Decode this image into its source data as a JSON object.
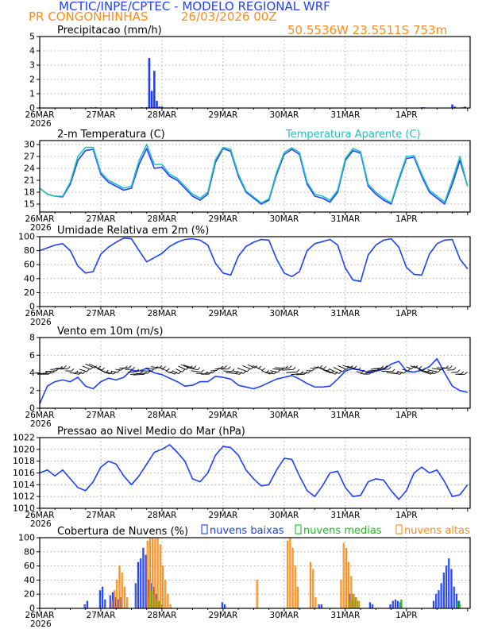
{
  "header": {
    "title": "MCTIC/INPE/CPTEC - MODELO REGIONAL WRF",
    "station": "PR CONGONHINHAS",
    "run": "26/03/2026 00Z",
    "location": "50.5536W 23.5511S 753m"
  },
  "colors": {
    "blue": "#1f3fff",
    "cyan": "#20c0c0",
    "green": "#22bb22",
    "orange": "#ff8c1a",
    "title": "#1f3fff",
    "header_orange": "#ff8c1a",
    "grid": "#999999"
  },
  "x_axis": {
    "day_labels": [
      "26MAR",
      "27MAR",
      "28MAR",
      "29MAR",
      "30MAR",
      "31MAR",
      "1APR"
    ],
    "year_label": "2026"
  },
  "chart_data": [
    {
      "id": "precip",
      "type": "bar",
      "title": "Precipitacao (mm/h)",
      "ylim": [
        0,
        5
      ],
      "yticks": [
        0,
        1,
        2,
        3,
        4,
        5
      ],
      "xunit": "hours since 26MAR 00Z",
      "xlim": [
        0,
        169
      ],
      "bar_width_h": 1,
      "series": [
        {
          "name": "precip",
          "color": "#1f3fff",
          "x": [
            0,
            5,
            10,
            20,
            22,
            40,
            42,
            43,
            44,
            45,
            46,
            47,
            48,
            52,
            55,
            90,
            150,
            151,
            162,
            163,
            166,
            167
          ],
          "values": [
            0.05,
            0.03,
            0.02,
            0.05,
            0.06,
            0.05,
            0.05,
            3.5,
            1.2,
            2.6,
            0.5,
            0.1,
            0.1,
            0.05,
            0.03,
            0.03,
            0.05,
            0.05,
            0.25,
            0.1,
            0.05,
            0.1
          ]
        }
      ]
    },
    {
      "id": "temp",
      "type": "line",
      "title": "2-m Temperatura (C)",
      "legend": "Temperatura Aparente (C)",
      "ylim": [
        13,
        31
      ],
      "yticks": [
        15,
        18,
        21,
        24,
        27,
        30
      ],
      "xlim": [
        0,
        169
      ],
      "series": [
        {
          "name": "Temperatura (C)",
          "color": "#1f3fff",
          "x": [
            0,
            3,
            6,
            9,
            12,
            15,
            18,
            21,
            24,
            27,
            30,
            33,
            36,
            39,
            42,
            45,
            48,
            51,
            54,
            57,
            60,
            63,
            66,
            69,
            72,
            75,
            78,
            81,
            84,
            87,
            90,
            93,
            96,
            99,
            102,
            105,
            108,
            111,
            114,
            117,
            120,
            123,
            126,
            129,
            132,
            135,
            138,
            141,
            144,
            147,
            150,
            153,
            156,
            159,
            162,
            165,
            168
          ],
          "values": [
            19,
            17.5,
            17,
            16.8,
            20,
            26,
            28.5,
            28.8,
            22.5,
            20.5,
            19.5,
            18.5,
            19,
            25,
            29,
            24,
            24.3,
            22,
            21,
            19,
            17,
            16,
            17.5,
            25.5,
            29,
            28.3,
            22,
            18,
            16.5,
            15,
            16,
            22.5,
            27.5,
            28.8,
            27.5,
            20,
            17,
            16.5,
            15.5,
            18,
            26,
            28.5,
            27.8,
            19.5,
            17.5,
            16,
            15,
            21,
            26.5,
            26.8,
            22,
            18,
            16.5,
            15,
            20,
            26,
            19.5
          ]
        },
        {
          "name": "Temperatura Aparente (C)",
          "color": "#20c0c0",
          "x": [
            0,
            3,
            6,
            9,
            12,
            15,
            18,
            21,
            24,
            27,
            30,
            33,
            36,
            39,
            42,
            45,
            48,
            51,
            54,
            57,
            60,
            63,
            66,
            69,
            72,
            75,
            78,
            81,
            84,
            87,
            90,
            93,
            96,
            99,
            102,
            105,
            108,
            111,
            114,
            117,
            120,
            123,
            126,
            129,
            132,
            135,
            138,
            141,
            144,
            147,
            150,
            153,
            156,
            159,
            162,
            165,
            168
          ],
          "values": [
            19,
            17.5,
            17,
            17,
            20.5,
            27,
            29.3,
            29.3,
            23,
            21,
            20,
            19,
            19.5,
            26,
            30,
            25,
            25,
            22.5,
            21.5,
            19.5,
            17.5,
            16.5,
            18,
            26.2,
            29.3,
            28.8,
            22.5,
            18.3,
            16.8,
            15.3,
            16.3,
            23,
            28,
            29.2,
            28,
            20.5,
            17.5,
            17,
            16,
            18.5,
            26.5,
            29,
            28.2,
            20,
            18,
            16.5,
            15.3,
            21.5,
            27,
            27.2,
            22.5,
            18.5,
            17,
            15.5,
            21,
            27,
            19.5
          ]
        }
      ]
    },
    {
      "id": "rh",
      "type": "line",
      "title": "Umidade Relativa em 2m (%)",
      "ylim": [
        0,
        100
      ],
      "yticks": [
        0,
        20,
        40,
        60,
        80,
        100
      ],
      "xlim": [
        0,
        169
      ],
      "series": [
        {
          "name": "Umidade Relativa (%)",
          "color": "#1f3fff",
          "x": [
            0,
            3,
            6,
            9,
            12,
            15,
            18,
            21,
            24,
            27,
            30,
            33,
            36,
            39,
            42,
            45,
            48,
            51,
            54,
            57,
            60,
            63,
            66,
            69,
            72,
            75,
            78,
            81,
            84,
            87,
            90,
            93,
            96,
            99,
            102,
            105,
            108,
            111,
            114,
            117,
            120,
            123,
            126,
            129,
            132,
            135,
            138,
            141,
            144,
            147,
            150,
            153,
            156,
            159,
            162,
            165,
            168
          ],
          "values": [
            80,
            84,
            88,
            90,
            80,
            58,
            48,
            50,
            75,
            85,
            92,
            98,
            97,
            80,
            64,
            70,
            76,
            86,
            92,
            96,
            97,
            95,
            88,
            62,
            48,
            45,
            72,
            86,
            92,
            96,
            95,
            68,
            48,
            43,
            50,
            80,
            90,
            93,
            96,
            88,
            55,
            38,
            36,
            74,
            88,
            95,
            97,
            85,
            56,
            46,
            45,
            75,
            90,
            95,
            96,
            68,
            54
          ]
        }
      ]
    },
    {
      "id": "wind",
      "type": "line",
      "title": "Vento em 10m (m/s)",
      "ylim": [
        0,
        8
      ],
      "yticks": [
        0,
        2,
        4,
        6,
        8
      ],
      "xlim": [
        0,
        169
      ],
      "series": [
        {
          "name": "Vento (m/s)",
          "color": "#1f3fff",
          "x": [
            0,
            3,
            6,
            9,
            12,
            15,
            18,
            21,
            24,
            27,
            30,
            33,
            36,
            39,
            42,
            45,
            48,
            51,
            54,
            57,
            60,
            63,
            66,
            69,
            72,
            75,
            78,
            81,
            84,
            87,
            90,
            93,
            96,
            99,
            102,
            105,
            108,
            111,
            114,
            117,
            120,
            123,
            126,
            129,
            132,
            135,
            138,
            141,
            144,
            147,
            150,
            153,
            156,
            159,
            162,
            165,
            168
          ],
          "values": [
            0.5,
            2.5,
            3,
            3.2,
            3,
            3.5,
            2.5,
            2.2,
            3,
            3.4,
            3.2,
            3.5,
            4.3,
            4.2,
            4.5,
            4,
            3.8,
            3.4,
            3,
            2.5,
            2.6,
            3,
            3,
            3.6,
            3.5,
            3.3,
            2.6,
            2.4,
            2.2,
            2.5,
            2.9,
            3.3,
            3.5,
            3.7,
            3.3,
            2.8,
            2.4,
            2.4,
            2.5,
            3.3,
            4.2,
            4.5,
            4.3,
            4.1,
            4.2,
            4.4,
            5,
            5.3,
            4.2,
            4.1,
            4.3,
            4.7,
            5.6,
            4,
            2.5,
            2,
            1.8
          ]
        }
      ]
    },
    {
      "id": "pressure",
      "type": "line",
      "title": "Pressao ao Nivel Medio do Mar (hPa)",
      "ylim": [
        1010,
        1022
      ],
      "yticks": [
        1010,
        1012,
        1014,
        1016,
        1018,
        1020,
        1022
      ],
      "xlim": [
        0,
        169
      ],
      "series": [
        {
          "name": "Pressao (hPa)",
          "color": "#1f3fff",
          "x": [
            0,
            3,
            6,
            9,
            12,
            15,
            18,
            21,
            24,
            27,
            30,
            33,
            36,
            39,
            42,
            45,
            48,
            51,
            54,
            57,
            60,
            63,
            66,
            69,
            72,
            75,
            78,
            81,
            84,
            87,
            90,
            93,
            96,
            99,
            102,
            105,
            108,
            111,
            114,
            117,
            120,
            123,
            126,
            129,
            132,
            135,
            138,
            141,
            144,
            147,
            150,
            153,
            156,
            159,
            162,
            165,
            168
          ],
          "values": [
            1016,
            1016.5,
            1015.5,
            1016.5,
            1015,
            1013.5,
            1013,
            1014.5,
            1017,
            1018,
            1017.5,
            1015.5,
            1014,
            1015.5,
            1017.5,
            1019.5,
            1020,
            1020.8,
            1019.5,
            1018,
            1015,
            1014.5,
            1016,
            1019,
            1020.5,
            1020.3,
            1019,
            1016.5,
            1015,
            1013.8,
            1014,
            1016.5,
            1018.5,
            1018.3,
            1015.5,
            1013,
            1012,
            1013.8,
            1016,
            1016.3,
            1013.5,
            1012,
            1012.2,
            1014.5,
            1015,
            1014.8,
            1013,
            1011.5,
            1013,
            1016,
            1017,
            1016,
            1016.5,
            1014.5,
            1012,
            1012.3,
            1014
          ]
        }
      ]
    },
    {
      "id": "clouds",
      "type": "bar",
      "title": "Cobertura de Nuvens (%)",
      "ylim": [
        0,
        100
      ],
      "yticks": [
        0,
        20,
        40,
        60,
        80,
        100
      ],
      "xlim": [
        0,
        169
      ],
      "legend": [
        "nuvens baixas",
        "nuvens medias",
        "nuvens altas"
      ],
      "series": [
        {
          "name": "nuvens baixas",
          "color": "#1f3fff",
          "offset": -0.33,
          "x": [
            18,
            19,
            24,
            25,
            26,
            28,
            29,
            30,
            31,
            32,
            38,
            39,
            40,
            41,
            42,
            43,
            44,
            45,
            46,
            47,
            72,
            73,
            110,
            111,
            122,
            123,
            124,
            130,
            131,
            138,
            139,
            140,
            141,
            142,
            155,
            156,
            157,
            158,
            159,
            160,
            161,
            162,
            163,
            164,
            165
          ],
          "values": [
            5,
            10,
            25,
            30,
            12,
            18,
            22,
            15,
            12,
            15,
            35,
            65,
            70,
            85,
            75,
            40,
            35,
            30,
            20,
            10,
            8,
            5,
            5,
            5,
            20,
            12,
            8,
            8,
            5,
            5,
            10,
            12,
            10,
            8,
            10,
            20,
            25,
            35,
            50,
            60,
            70,
            55,
            30,
            20,
            10
          ]
        },
        {
          "name": "nuvens medias",
          "color": "#22bb22",
          "offset": 0,
          "x": [
            43,
            44,
            45,
            46,
            47,
            48,
            122,
            123,
            124,
            125,
            142,
            164,
            165
          ],
          "values": [
            15,
            25,
            18,
            12,
            10,
            5,
            12,
            20,
            15,
            10,
            12,
            10,
            5
          ]
        },
        {
          "name": "nuvens altas",
          "color": "#ff8c1a",
          "offset": 0.33,
          "x": [
            28,
            29,
            30,
            31,
            32,
            33,
            34,
            42,
            43,
            44,
            45,
            46,
            47,
            48,
            49,
            50,
            51,
            85,
            97,
            98,
            99,
            100,
            101,
            106,
            107,
            108,
            118,
            119,
            120,
            121,
            122,
            123,
            124,
            125
          ],
          "values": [
            10,
            25,
            40,
            60,
            50,
            30,
            15,
            95,
            100,
            100,
            98,
            100,
            90,
            60,
            40,
            20,
            5,
            40,
            95,
            100,
            85,
            60,
            30,
            65,
            55,
            15,
            40,
            92,
            85,
            65,
            45,
            20,
            15,
            10
          ]
        }
      ]
    }
  ]
}
